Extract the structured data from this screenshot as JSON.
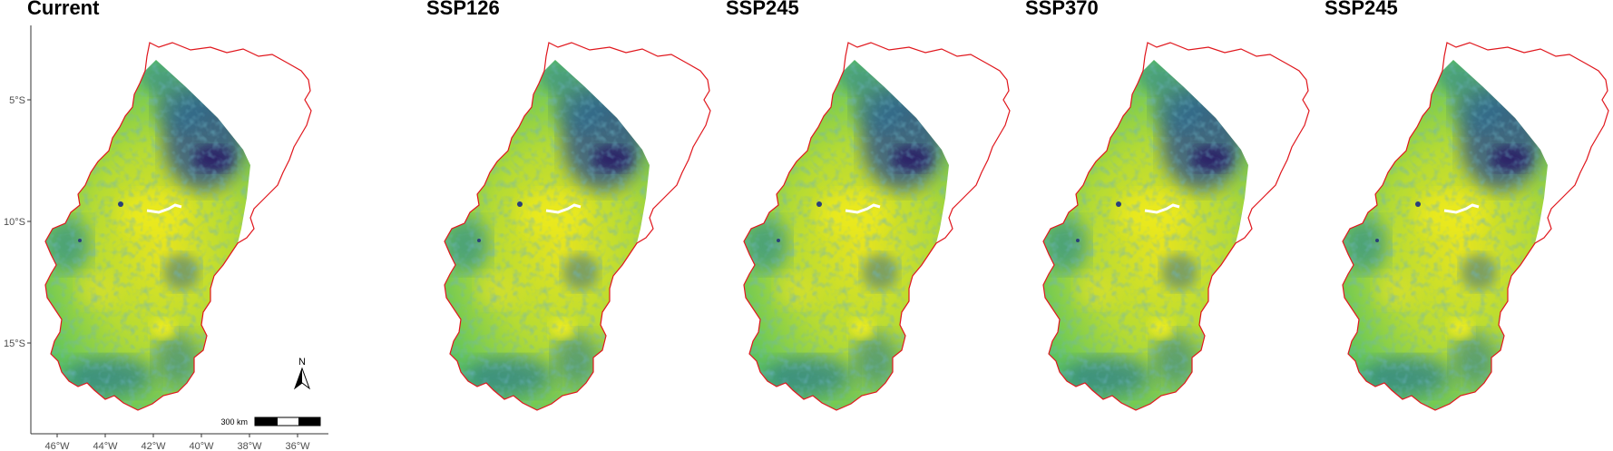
{
  "panels": [
    {
      "title": "Current"
    },
    {
      "title": "SSP126"
    },
    {
      "title": "SSP245"
    },
    {
      "title": "SSP370"
    },
    {
      "title": "SSP245"
    }
  ],
  "axes": {
    "y_ticks": [
      "5°S",
      "10°S",
      "15°S"
    ],
    "x_ticks": [
      "46°W",
      "44°W",
      "42°W",
      "40°W",
      "38°W",
      "36°W"
    ]
  },
  "north_arrow": {
    "label": "N"
  },
  "scale_bar": {
    "label": "300 km"
  },
  "colors": {
    "boundary": "#e0161c",
    "axis": "#333333",
    "palette": [
      "#e8e61c",
      "#a6d83a",
      "#4dbf6c",
      "#23968b",
      "#2c6f8e",
      "#3b4b8c",
      "#2a1f66"
    ]
  }
}
